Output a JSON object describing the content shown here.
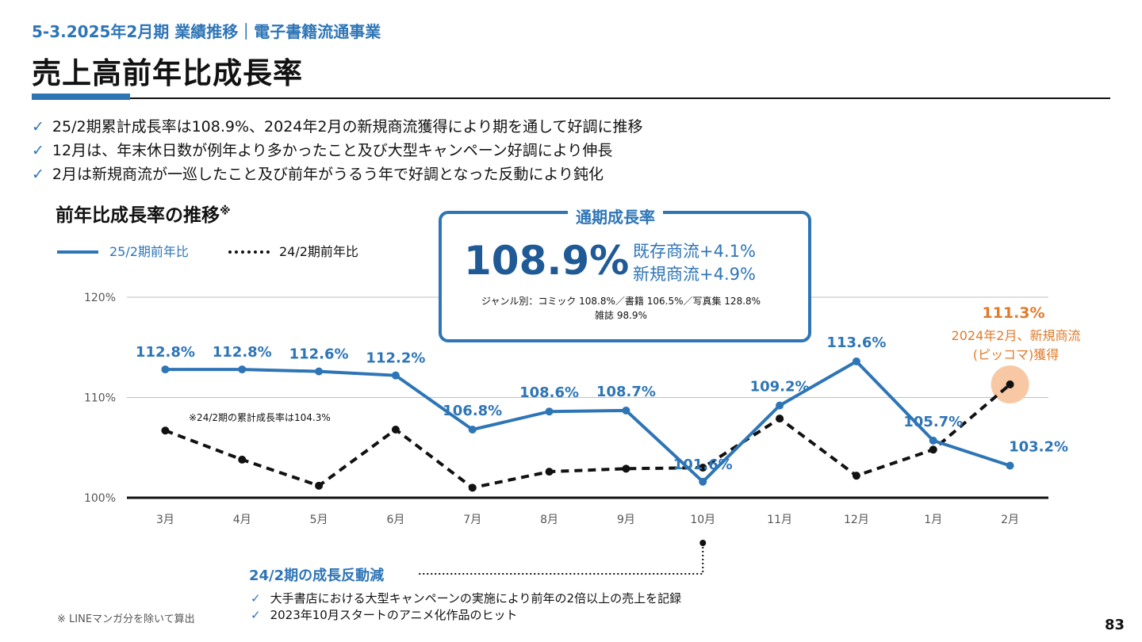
{
  "header": {
    "section_label": "5-3.2025年2月期 業績推移｜電子書籍流通事業",
    "title": "売上高前年比成長率"
  },
  "bullets": [
    "25/2期累計成長率は108.9%、2024年2月の新規商流獲得により期を通して好調に推移",
    "12月は、年末休日数が例年より多かったこと及び大型キャンペーン好調により伸長",
    "2月は新規商流が一巡したこと及び前年がうるう年で好調となった反動により鈍化"
  ],
  "check_glyph": "✓",
  "chart_section": {
    "title": "前年比成長率の推移",
    "title_mark": "※"
  },
  "summary_box": {
    "title": "通期成長率",
    "value": "108.9%",
    "existing": "既存商流+4.1%",
    "new": "新規商流+4.9%",
    "genre_line_1": "ジャンル別：コミック 108.8%／書籍 106.5%／写真集 128.8%",
    "genre_line_2": "雑誌 98.9%"
  },
  "annotations": {
    "note_24": "※24/2期の累計成長率は104.3%",
    "callout_value": "111.3%",
    "callout_line_1": "2024年2月、新規商流",
    "callout_line_2": "(ピッコマ)獲得",
    "reaction_title": "24/2期の成長反動減",
    "reasons": [
      "大手書店における大型キャンペーンの実施により前年の2倍以上の売上を記録",
      "2023年10月スタートのアニメ化作品のヒット"
    ]
  },
  "footnote": "※ LINEマンガ分を除いて算出",
  "page_number": "83",
  "colors": {
    "series_25": "#2e75b6",
    "series_24": "#111111",
    "highlight": "#f8c8a4",
    "callout_text": "#e07b2a",
    "grid": "#bfbfbf"
  },
  "chart_data": {
    "type": "line",
    "categories": [
      "3月",
      "4月",
      "5月",
      "6月",
      "7月",
      "8月",
      "9月",
      "10月",
      "11月",
      "12月",
      "1月",
      "2月"
    ],
    "y_ticks": [
      "100%",
      "110%",
      "120%"
    ],
    "ylim": [
      100,
      120
    ],
    "grid": true,
    "legend_position": "top-left",
    "series": [
      {
        "name": "25/2期前年比",
        "style": "solid",
        "values": [
          112.8,
          112.8,
          112.6,
          112.2,
          106.8,
          108.6,
          108.7,
          101.6,
          109.2,
          113.6,
          105.7,
          103.2
        ],
        "labels": [
          "112.8%",
          "112.8%",
          "112.6%",
          "112.2%",
          "106.8%",
          "108.6%",
          "108.7%",
          "101.6%",
          "109.2%",
          "113.6%",
          "105.7%",
          "103.2%"
        ]
      },
      {
        "name": "24/2期前年比",
        "style": "dotted",
        "values": [
          106.7,
          103.8,
          101.2,
          106.8,
          101.0,
          102.6,
          102.9,
          103.0,
          107.9,
          102.2,
          104.8,
          111.3
        ]
      }
    ]
  }
}
